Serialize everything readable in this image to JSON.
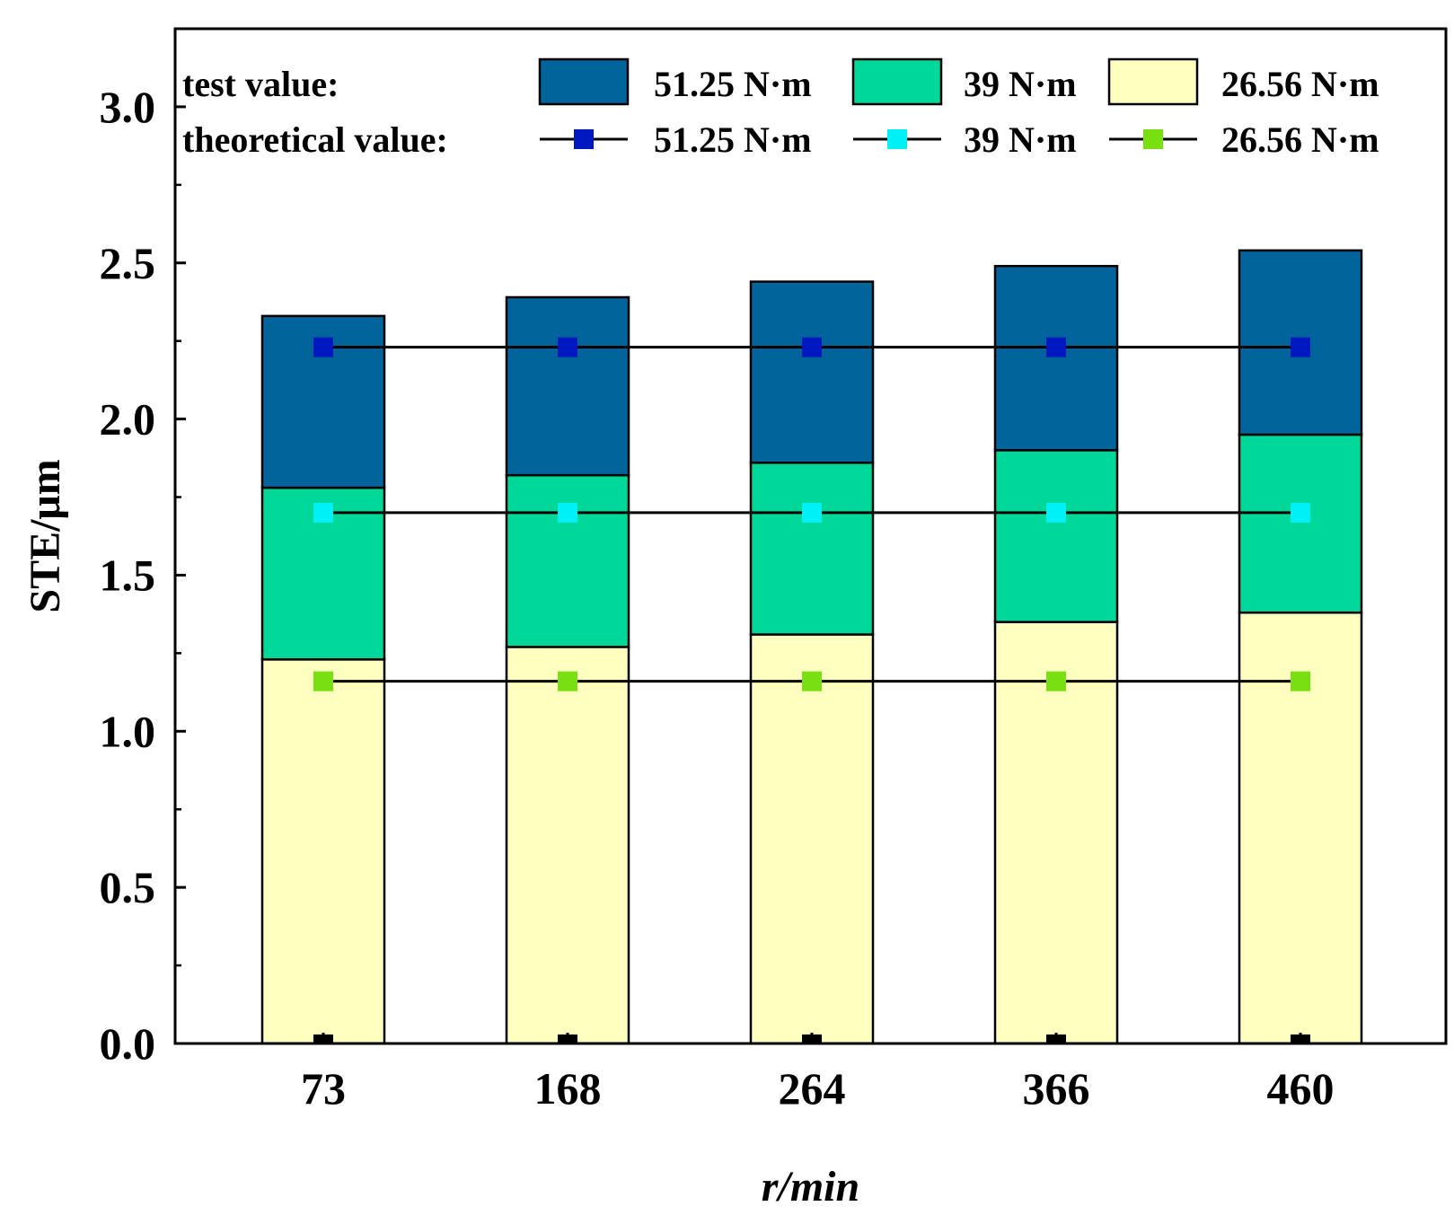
{
  "chart_data": {
    "type": "bar",
    "stacked": true,
    "xlabel": "r/min",
    "ylabel": "STE/μm",
    "ylim": [
      0,
      3.25
    ],
    "yticks": [
      "0.0",
      "0.5",
      "1.0",
      "1.5",
      "2.0",
      "2.5",
      "3.0"
    ],
    "categories": [
      "73",
      "168",
      "264",
      "366",
      "460"
    ],
    "grid": false,
    "legend_position": "top",
    "bar_series": [
      {
        "name": "26.56 N·m",
        "color": "#ffffc0",
        "values": [
          1.23,
          1.27,
          1.31,
          1.35,
          1.38
        ]
      },
      {
        "name": "39 N·m",
        "color": "#00d89a",
        "values": [
          0.55,
          0.55,
          0.55,
          0.55,
          0.57
        ]
      },
      {
        "name": "51.25 N·m",
        "color": "#02649b",
        "values": [
          0.55,
          0.57,
          0.58,
          0.59,
          0.59
        ]
      }
    ],
    "line_series": [
      {
        "name": "51.25 N·m",
        "color": "#0018c0",
        "values": [
          2.23,
          2.23,
          2.23,
          2.23,
          2.23
        ]
      },
      {
        "name": "39 N·m",
        "color": "#00f0f8",
        "values": [
          1.7,
          1.7,
          1.7,
          1.7,
          1.7
        ]
      },
      {
        "name": "26.56 N·m",
        "color": "#78e010",
        "values": [
          1.16,
          1.16,
          1.16,
          1.16,
          1.16
        ]
      }
    ],
    "baseline_markers": {
      "color": "#000000",
      "values": [
        0,
        0,
        0,
        0,
        0
      ]
    },
    "legend": {
      "test_label": "test value:",
      "theoretical_label": "theoretical value:",
      "bar_order": [
        "51.25 N·m",
        "39 N·m",
        "26.56 N·m"
      ],
      "line_order": [
        "51.25 N·m",
        "39 N·m",
        "26.56 N·m"
      ]
    }
  }
}
